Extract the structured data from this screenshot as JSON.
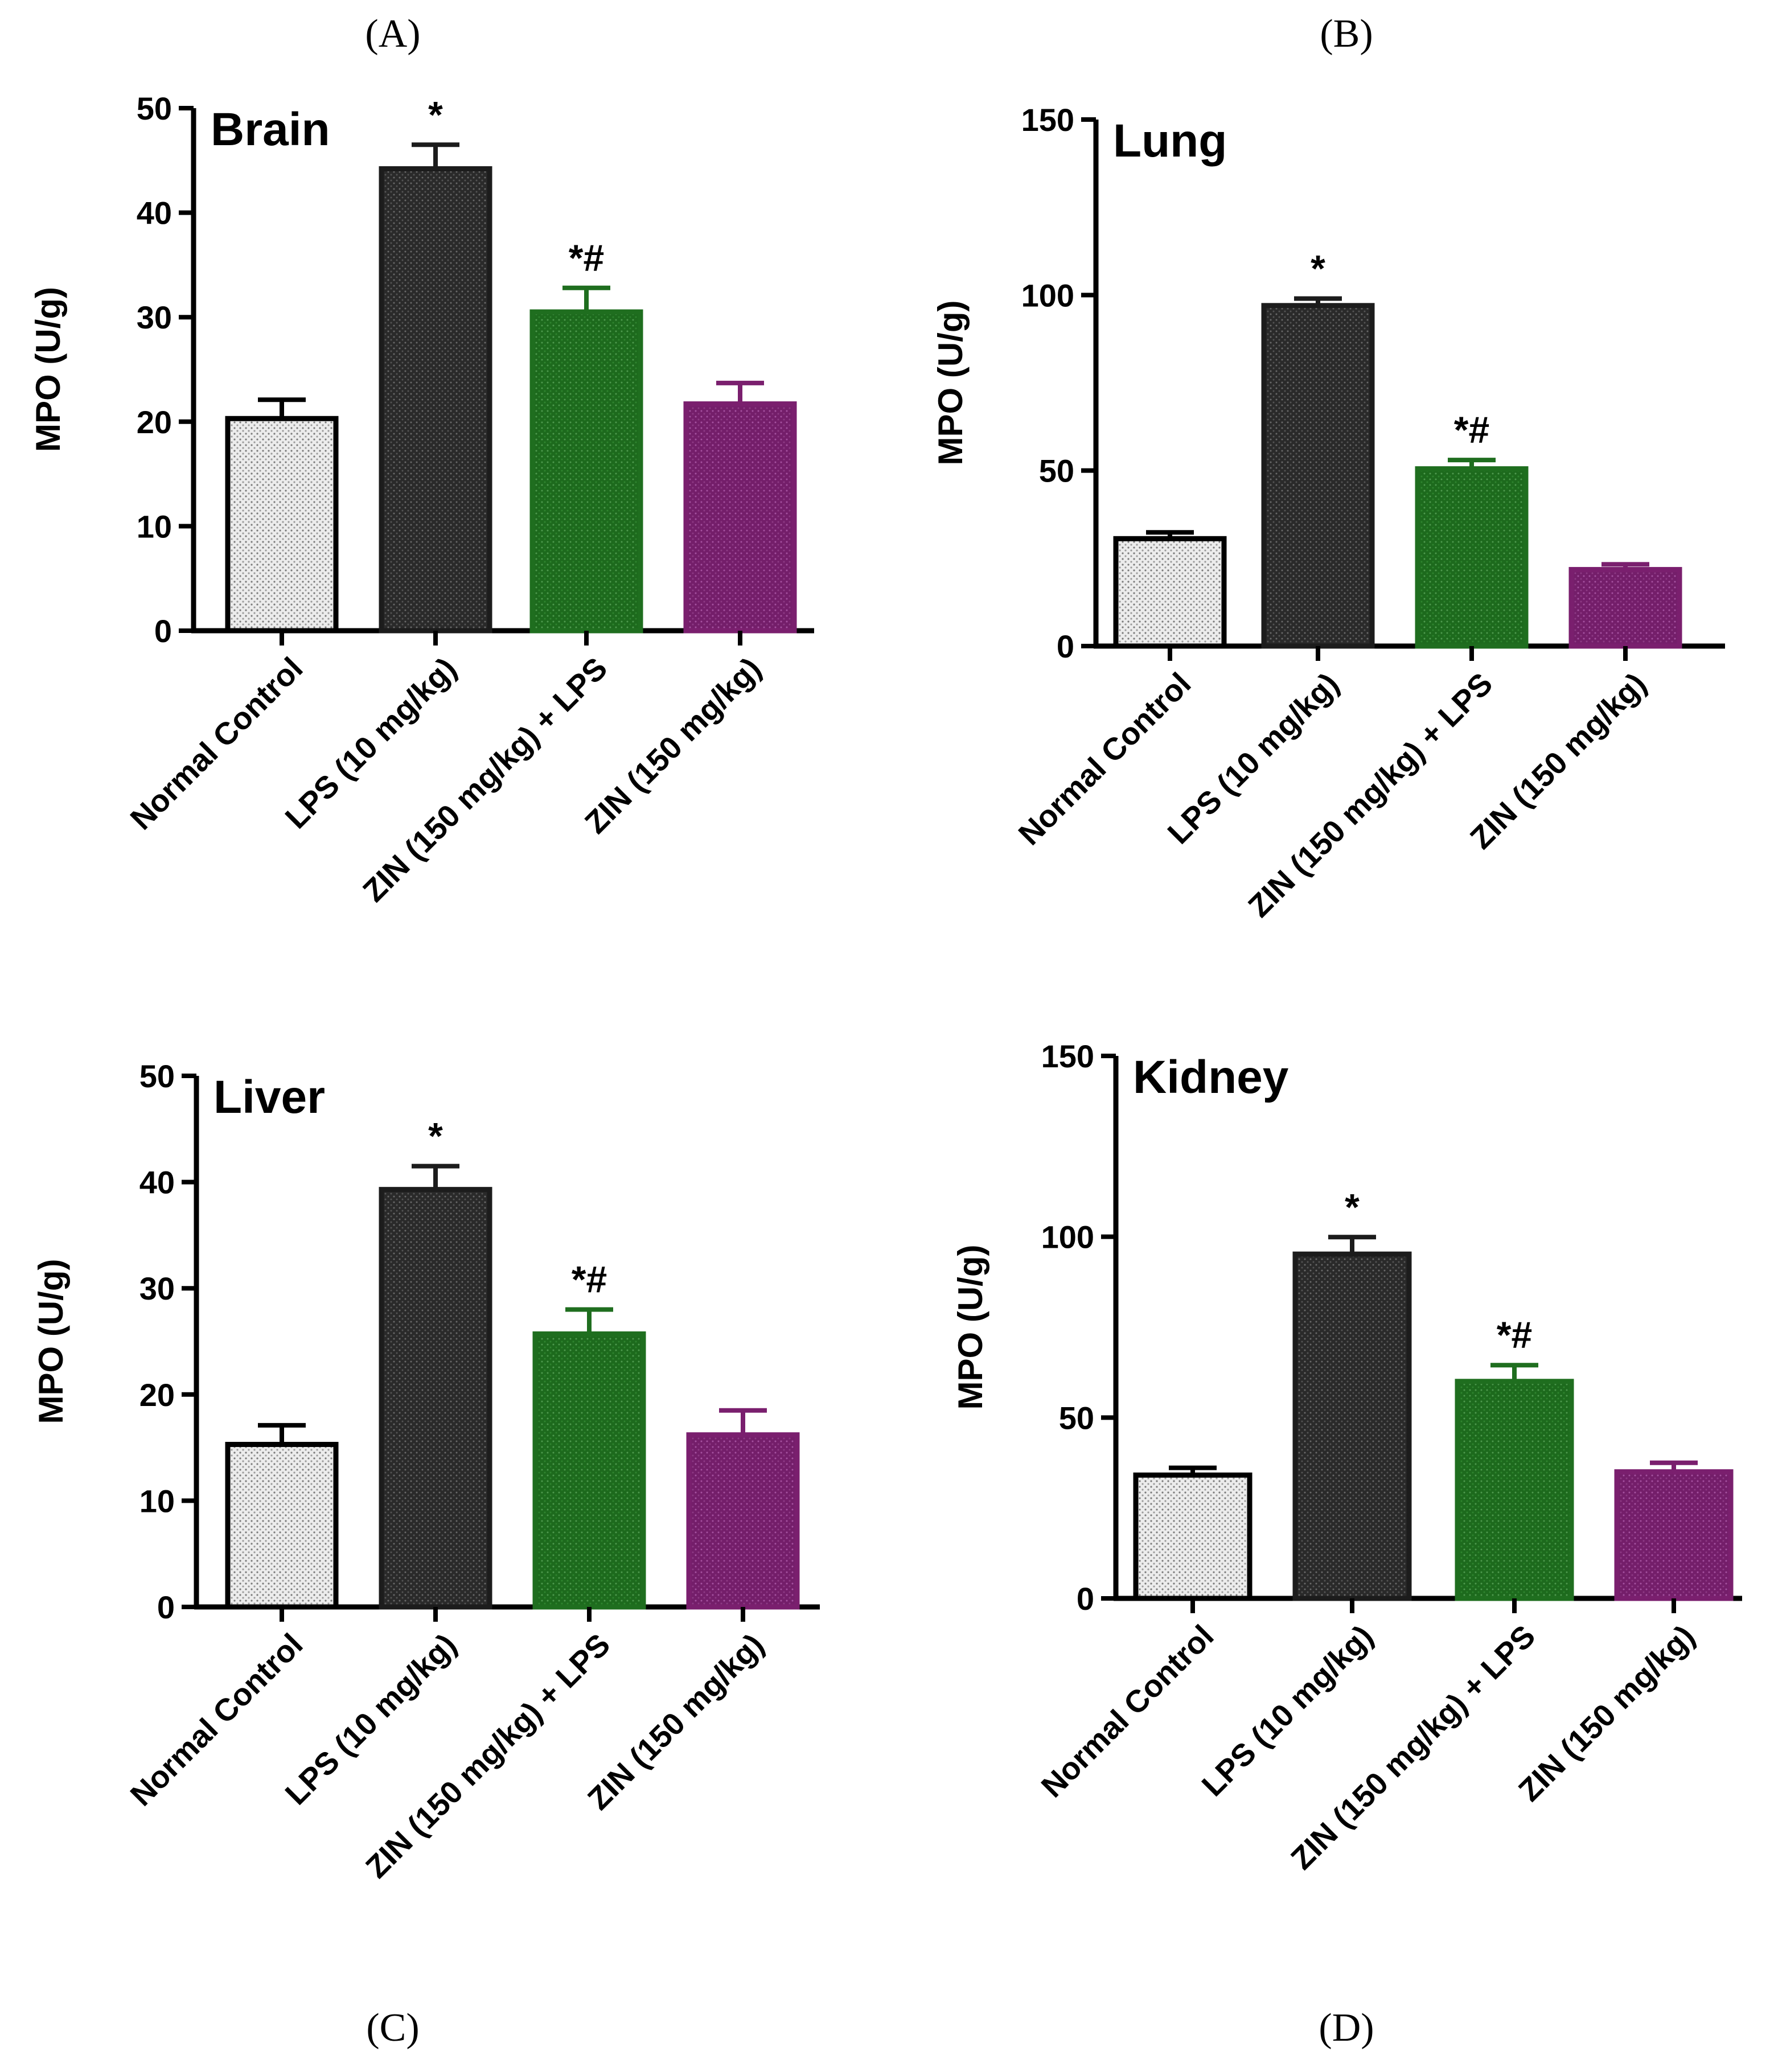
{
  "figure": {
    "panel_letters": [
      "(A)",
      "(B)",
      "(C)",
      "(D)"
    ]
  },
  "colors": {
    "normal_control": "#d9d9d9",
    "lps": "#1c1c1c",
    "zin_lps": "#1f6e1f",
    "zin": "#7a1f6e",
    "axis": "#000000"
  },
  "chart_data": [
    {
      "type": "bar",
      "title": "Brain",
      "panel": "(A)",
      "ylabel": "MPO (U/g)",
      "ylim": [
        0,
        50
      ],
      "yticks": [
        0,
        10,
        20,
        30,
        40,
        50
      ],
      "categories": [
        "Normal Control",
        "LPS (10 mg/kg)",
        "ZIN (150 mg/kg) + LPS",
        "ZIN (150 mg/kg)"
      ],
      "values": [
        20.3,
        44.2,
        30.5,
        21.7
      ],
      "errors": [
        1.8,
        2.3,
        2.3,
        2.0
      ],
      "annotations": [
        "",
        "*",
        "*#",
        ""
      ]
    },
    {
      "type": "bar",
      "title": "Lung",
      "panel": "(B)",
      "ylabel": "MPO (U/g)",
      "ylim": [
        0,
        150
      ],
      "yticks": [
        0,
        50,
        100,
        150
      ],
      "categories": [
        "Normal Control",
        "LPS (10 mg/kg)",
        "ZIN (150 mg/kg) + LPS",
        "ZIN (150 mg/kg)"
      ],
      "values": [
        30.6,
        97.0,
        50.5,
        21.8
      ],
      "errors": [
        1.8,
        2.0,
        2.5,
        1.5
      ],
      "annotations": [
        "",
        "*",
        "*#",
        ""
      ]
    },
    {
      "type": "bar",
      "title": "Liver",
      "panel": "(C)",
      "ylabel": "MPO (U/g)",
      "ylim": [
        0,
        50
      ],
      "yticks": [
        0,
        10,
        20,
        30,
        40,
        50
      ],
      "categories": [
        "Normal Control",
        "LPS (10 mg/kg)",
        "ZIN (150 mg/kg) + LPS",
        "ZIN (150 mg/kg)"
      ],
      "values": [
        15.3,
        39.3,
        25.7,
        16.2
      ],
      "errors": [
        1.8,
        2.2,
        2.3,
        2.3
      ],
      "annotations": [
        "",
        "*",
        "*#",
        ""
      ]
    },
    {
      "type": "bar",
      "title": "Kidney",
      "panel": "(D)",
      "ylabel": "MPO (U/g)",
      "ylim": [
        0,
        150
      ],
      "yticks": [
        0,
        50,
        100,
        150
      ],
      "categories": [
        "Normal Control",
        "LPS (10 mg/kg)",
        "ZIN (150 mg/kg) + LPS",
        "ZIN (150 mg/kg)"
      ],
      "values": [
        34.1,
        95.2,
        60.0,
        35.0
      ],
      "errors": [
        2.0,
        4.7,
        4.5,
        2.5
      ],
      "annotations": [
        "",
        "*",
        "*#",
        ""
      ]
    }
  ]
}
